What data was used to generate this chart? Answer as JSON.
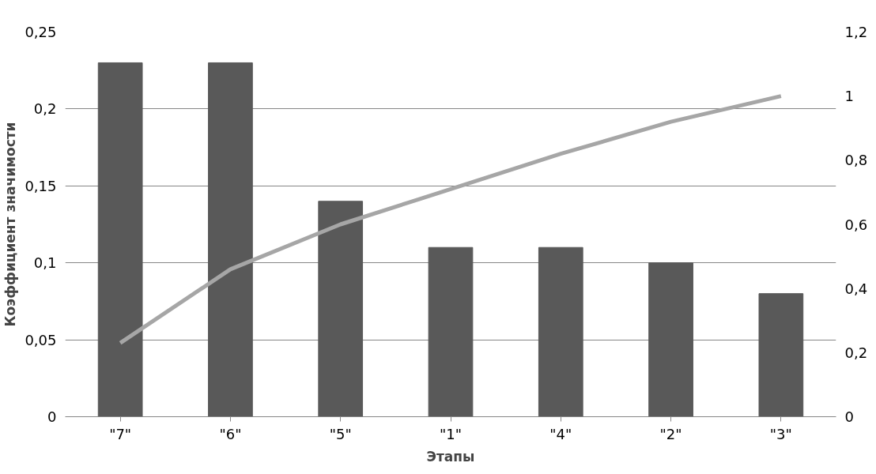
{
  "chart_data": {
    "type": "bar",
    "xlabel": "Этапы",
    "ylabel": "Коэффициент значимости",
    "categories": [
      "\"7\"",
      "\"6\"",
      "\"5\"",
      "\"1\"",
      "\"4\"",
      "\"2\"",
      "\"3\""
    ],
    "series": [
      {
        "color": "#595959",
        "values": [
          0.23,
          0.23,
          0.14,
          0.11,
          0.11,
          0.1,
          0.08
        ]
      },
      {
        "type": "line",
        "axis": "y2",
        "color": "#a6a6a6",
        "values": [
          0.23,
          0.46,
          0.6,
          0.71,
          0.82,
          0.92,
          1.0
        ]
      }
    ],
    "ylim": [
      0,
      0.25
    ],
    "yticks": [
      {
        "value": 0,
        "label": "0"
      },
      {
        "value": 0.05,
        "label": "0,05"
      },
      {
        "value": 0.1,
        "label": "0,1"
      },
      {
        "value": 0.15,
        "label": "0,15"
      },
      {
        "value": 0.2,
        "label": "0,2"
      },
      {
        "value": 0.25,
        "label": "0,25"
      }
    ],
    "y2lim": [
      0,
      1.2
    ],
    "y2ticks": [
      {
        "value": 0,
        "label": "0"
      },
      {
        "value": 0.2,
        "label": "0,2"
      },
      {
        "value": 0.4,
        "label": "0,4"
      },
      {
        "value": 0.6,
        "label": "0,6"
      },
      {
        "value": 0.8,
        "label": "0,8"
      },
      {
        "value": 1,
        "label": "1"
      },
      {
        "value": 1.2,
        "label": "1,2"
      }
    ],
    "grid": "y"
  }
}
